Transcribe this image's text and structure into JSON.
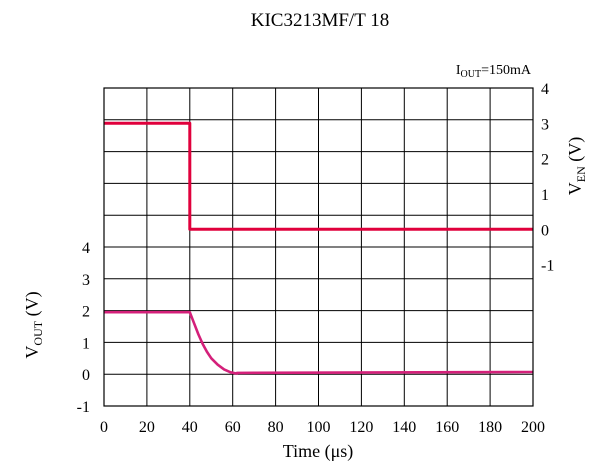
{
  "chart_data": {
    "type": "line",
    "title": "KIC3213MF/T 18",
    "annotation": {
      "base": "I",
      "sub": "OUT",
      "rest": "=150mA"
    },
    "xlabel": "Time (μs)",
    "ylabel_left": {
      "base": "V",
      "sub": "OUT",
      "unit": " (V)"
    },
    "ylabel_right": {
      "base": "V",
      "sub": "EN",
      "unit": " (V)"
    },
    "x_range": [
      0,
      200
    ],
    "x_ticks": [
      "0",
      "20",
      "40",
      "60",
      "80",
      "100",
      "120",
      "140",
      "160",
      "180",
      "200"
    ],
    "left_axis": {
      "range": [
        -1,
        9
      ],
      "tick_labels": [
        "-1",
        "0",
        "1",
        "2",
        "3",
        "4"
      ]
    },
    "right_axis": {
      "range": [
        -5,
        4
      ],
      "tick_labels": [
        "-1",
        "0",
        "1",
        "2",
        "3",
        "4"
      ]
    },
    "grid": true,
    "series": [
      {
        "axis": "right",
        "color": "#e0003c",
        "points": [
          [
            0,
            3
          ],
          [
            40,
            3
          ],
          [
            40,
            0
          ],
          [
            200,
            0
          ]
        ]
      },
      {
        "axis": "left",
        "color": "#d4207a",
        "points": [
          [
            0,
            1.95
          ],
          [
            40,
            1.95
          ],
          [
            40,
            1.95
          ],
          [
            42,
            1.6
          ],
          [
            44,
            1.25
          ],
          [
            46,
            0.95
          ],
          [
            48,
            0.7
          ],
          [
            50,
            0.5
          ],
          [
            53,
            0.3
          ],
          [
            56,
            0.15
          ],
          [
            59,
            0.06
          ],
          [
            62,
            0.02
          ],
          [
            62,
            0.04
          ],
          [
            200,
            0.07
          ]
        ]
      }
    ]
  }
}
